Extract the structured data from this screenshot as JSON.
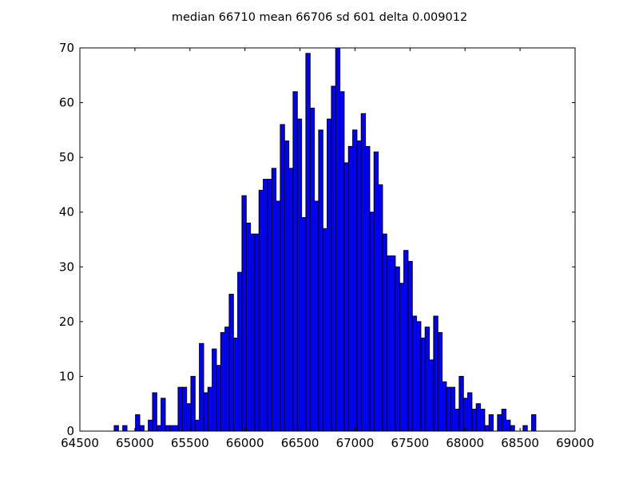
{
  "chart_data": {
    "type": "bar",
    "title": "median 66710 mean 66706 sd 601 delta 0.009012",
    "xlabel": "",
    "ylabel": "",
    "xlim": [
      64500,
      69000
    ],
    "ylim": [
      0,
      70
    ],
    "x_ticks": [
      64500,
      65000,
      65500,
      66000,
      66500,
      67000,
      67500,
      68000,
      68500,
      69000
    ],
    "y_ticks": [
      0,
      10,
      20,
      30,
      40,
      50,
      60,
      70
    ],
    "bin_start": 64812,
    "bin_width": 38.7,
    "values": [
      1,
      0,
      1,
      0,
      0,
      3,
      1,
      0,
      2,
      7,
      1,
      6,
      1,
      1,
      1,
      8,
      8,
      5,
      10,
      2,
      16,
      7,
      8,
      15,
      12,
      18,
      19,
      25,
      17,
      29,
      43,
      38,
      36,
      36,
      44,
      46,
      46,
      48,
      42,
      56,
      53,
      48,
      62,
      57,
      39,
      69,
      59,
      42,
      55,
      37,
      57,
      63,
      70,
      62,
      49,
      52,
      55,
      53,
      58,
      52,
      40,
      51,
      45,
      36,
      32,
      32,
      30,
      27,
      33,
      31,
      21,
      20,
      17,
      19,
      13,
      21,
      18,
      9,
      8,
      8,
      4,
      10,
      6,
      7,
      4,
      5,
      4,
      1,
      3,
      0,
      3,
      4,
      2,
      1,
      0,
      0,
      1,
      0,
      3
    ],
    "grid": false,
    "legend": "none",
    "bar_color": "#0000ff",
    "edge_color": "#000000"
  }
}
